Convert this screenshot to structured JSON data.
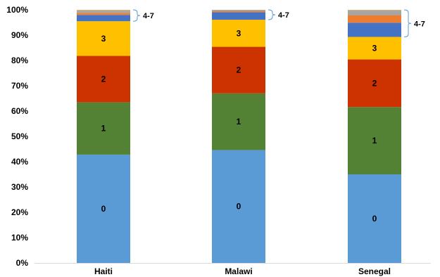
{
  "chart_data": {
    "type": "bar",
    "stacked": true,
    "percent": true,
    "title": "",
    "xlabel": "",
    "ylabel": "",
    "ylim": [
      0,
      100
    ],
    "yticks": [
      "0%",
      "10%",
      "20%",
      "30%",
      "40%",
      "50%",
      "60%",
      "70%",
      "80%",
      "90%",
      "100%"
    ],
    "grid": false,
    "legend": "none",
    "categories": [
      "Haiti",
      "Malawi",
      "Senegal"
    ],
    "series": [
      {
        "name": "0",
        "color": "#5b9bd5",
        "values": [
          42.8,
          44.6,
          35.0
        ],
        "label": "0"
      },
      {
        "name": "1",
        "color": "#548235",
        "values": [
          20.7,
          22.4,
          26.6
        ],
        "label": "1"
      },
      {
        "name": "2",
        "color": "#cc3300",
        "values": [
          18.3,
          18.4,
          18.8
        ],
        "label": "2"
      },
      {
        "name": "3",
        "color": "#ffc000",
        "values": [
          13.7,
          10.7,
          8.9
        ],
        "label": "3"
      },
      {
        "name": "4",
        "color": "#4472c4",
        "values": [
          2.5,
          3.0,
          5.6
        ],
        "label": ""
      },
      {
        "name": "5",
        "color": "#ed7d31",
        "values": [
          0.8,
          0.5,
          3.0
        ],
        "label": ""
      },
      {
        "name": "6",
        "color": "#a5a5a5",
        "values": [
          0.8,
          0.4,
          1.8
        ],
        "label": ""
      },
      {
        "name": "7",
        "color": "#d4a96a",
        "values": [
          0.4,
          0.0,
          0.3
        ],
        "label": ""
      }
    ],
    "annotations": [
      {
        "text": "4-7",
        "category": "Haiti"
      },
      {
        "text": "4-7",
        "category": "Malawi"
      },
      {
        "text": "4-7",
        "category": "Senegal"
      }
    ]
  }
}
